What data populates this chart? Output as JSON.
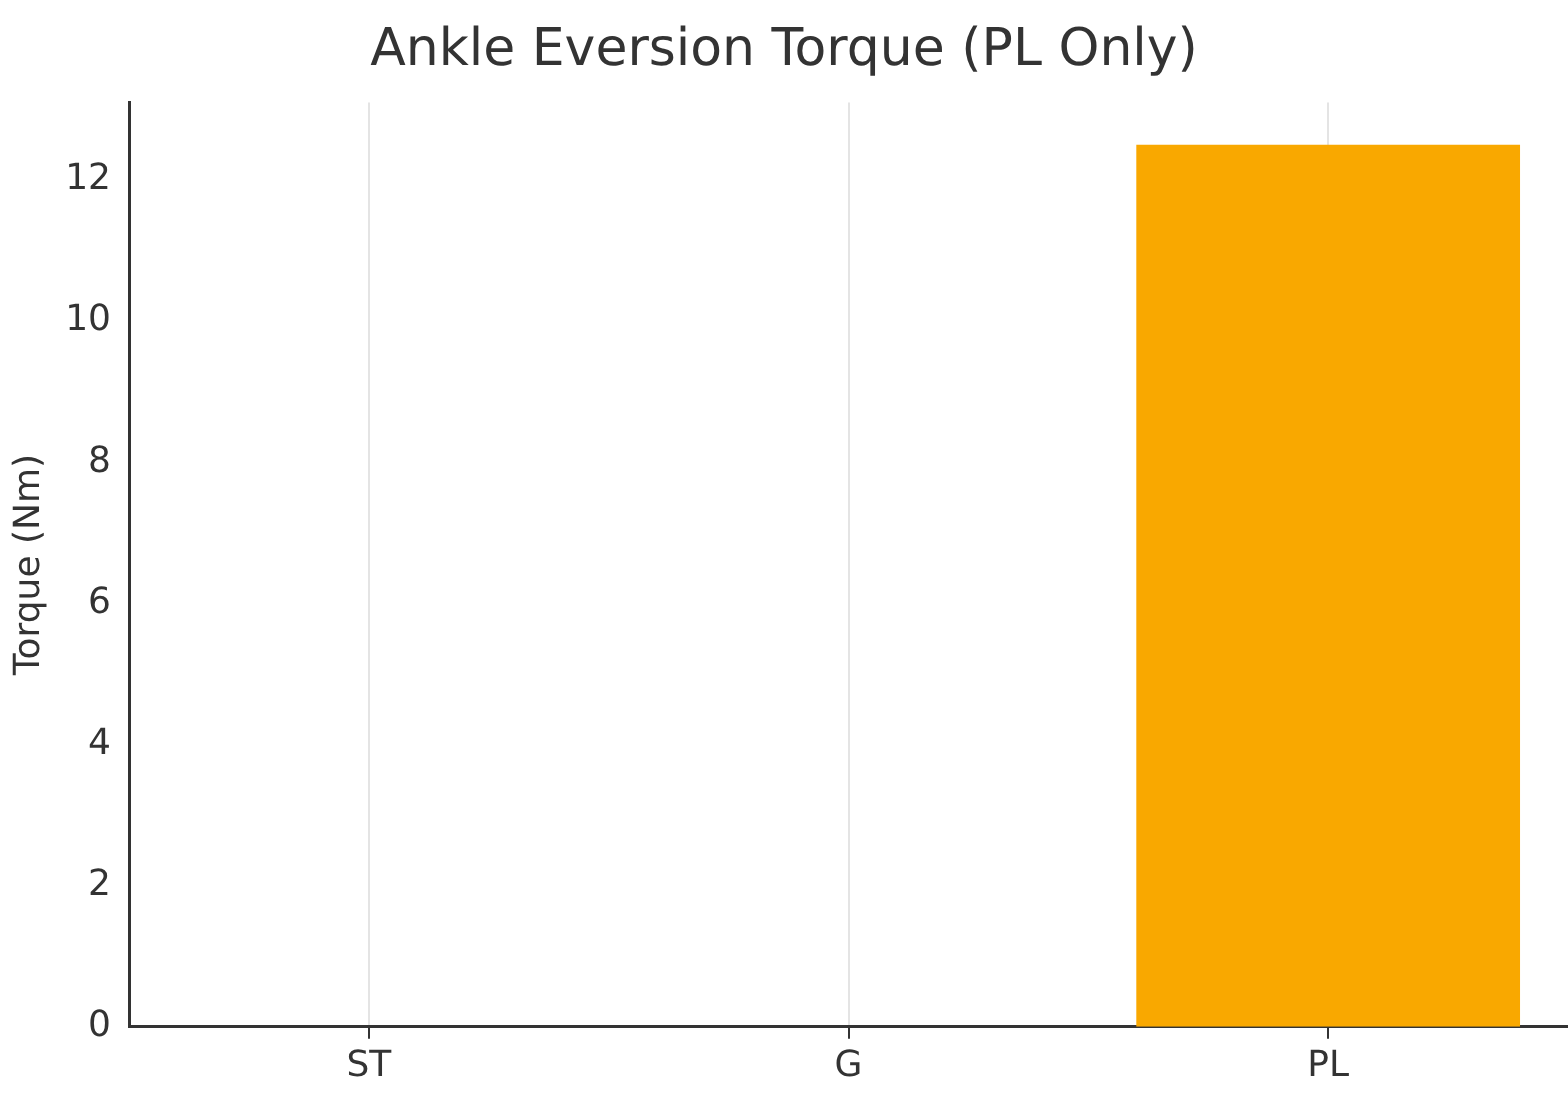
{
  "chart_data": {
    "type": "bar",
    "title": "Ankle Eversion Torque (PL Only)",
    "ylabel": "Torque (Nm)",
    "categories": [
      "ST",
      "G",
      "PL"
    ],
    "values": [
      0,
      0,
      12.5
    ],
    "color": "#f9a800",
    "ylim": [
      0,
      13.1
    ],
    "yticks": [
      0,
      2,
      4,
      6,
      8,
      10,
      12
    ],
    "grid": "x"
  }
}
